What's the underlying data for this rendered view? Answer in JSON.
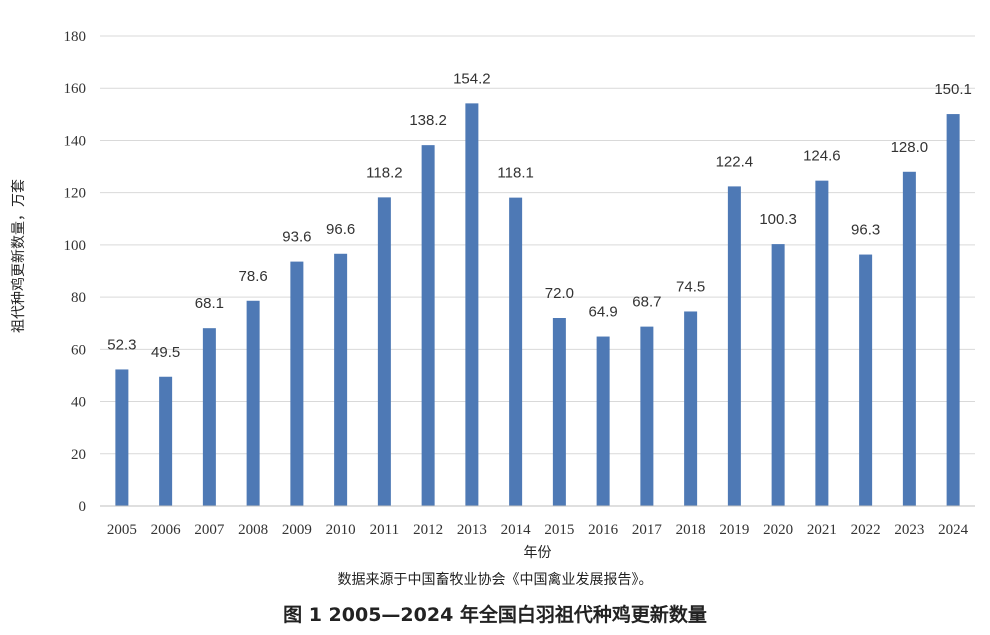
{
  "chart_data": {
    "type": "bar",
    "categories": [
      "2005",
      "2006",
      "2007",
      "2008",
      "2009",
      "2010",
      "2011",
      "2012",
      "2013",
      "2014",
      "2015",
      "2016",
      "2017",
      "2018",
      "2019",
      "2020",
      "2021",
      "2022",
      "2023",
      "2024"
    ],
    "series": [
      {
        "values": [
          52.3,
          49.5,
          68.1,
          78.6,
          93.6,
          96.6,
          118.2,
          138.2,
          154.2,
          118.1,
          72.0,
          64.9,
          68.7,
          74.5,
          122.4,
          100.3,
          124.6,
          96.3,
          128.0,
          150.1
        ]
      }
    ],
    "data_labels": [
      "52.3",
      "49.5",
      "68.1",
      "78.6",
      "93.6",
      "96.6",
      "118.2",
      "138.2",
      "154.2",
      "118.1",
      "72.0",
      "64.9",
      "68.7",
      "74.5",
      "122.4",
      "100.3",
      "124.6",
      "96.3",
      "128.0",
      "150.1"
    ],
    "xlabel": "年份",
    "ylabel": "祖代种鸡更新数量，万套",
    "ylim": [
      0,
      180
    ],
    "yticks": [
      "0",
      "20",
      "40",
      "60",
      "80",
      "100",
      "120",
      "140",
      "160",
      "180"
    ],
    "grid": true,
    "bar_color": "#4e79b5",
    "grid_color": "#d9d9d9"
  },
  "source_note": "数据来源于中国畜牧业协会《中国禽业发展报告》。",
  "figure_caption": "图 1 2005—2024 年全国白羽祖代种鸡更新数量"
}
